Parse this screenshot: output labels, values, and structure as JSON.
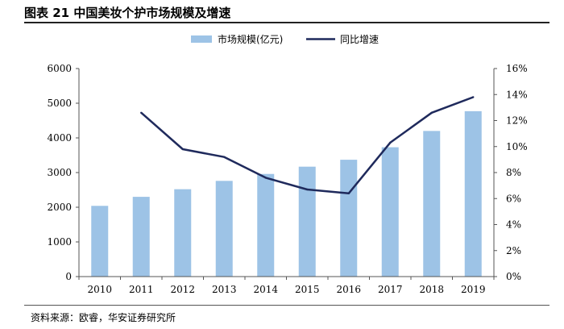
{
  "title": "图表 21  中国美妆个护市场规模及增速",
  "source": "资料来源：欧睿，华安证券研究所",
  "colors": {
    "bar": "#9DC3E6",
    "line": "#1F2A5C",
    "axis": "#555555"
  },
  "chart_data": {
    "type": "bar+line",
    "categories": [
      "2010",
      "2011",
      "2012",
      "2013",
      "2014",
      "2015",
      "2016",
      "2017",
      "2018",
      "2019"
    ],
    "series": [
      {
        "name": "市场规模(亿元)",
        "type": "bar",
        "axis": "left",
        "values": [
          2040,
          2300,
          2520,
          2760,
          2960,
          3170,
          3370,
          3730,
          4200,
          4770
        ]
      },
      {
        "name": "同比增速",
        "type": "line",
        "axis": "right",
        "values": [
          null,
          12.6,
          9.8,
          9.2,
          7.6,
          6.7,
          6.4,
          10.3,
          12.6,
          13.8
        ]
      }
    ],
    "y_left": {
      "min": 0,
      "max": 6000,
      "ticks": [
        "0",
        "1000",
        "2000",
        "3000",
        "4000",
        "5000",
        "6000"
      ]
    },
    "y_right": {
      "min": 0,
      "max": 16,
      "ticks": [
        "0%",
        "2%",
        "4%",
        "6%",
        "8%",
        "10%",
        "12%",
        "14%",
        "16%"
      ]
    },
    "legend_position": "top-center",
    "grid": false
  }
}
